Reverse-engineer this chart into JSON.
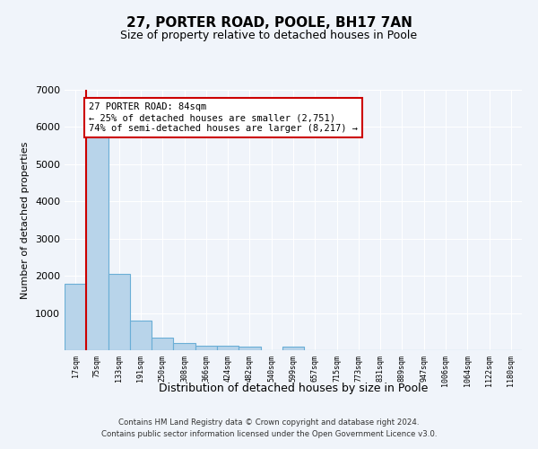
{
  "title": "27, PORTER ROAD, POOLE, BH17 7AN",
  "subtitle": "Size of property relative to detached houses in Poole",
  "xlabel": "Distribution of detached houses by size in Poole",
  "ylabel": "Number of detached properties",
  "bin_labels": [
    "17sqm",
    "75sqm",
    "133sqm",
    "191sqm",
    "250sqm",
    "308sqm",
    "366sqm",
    "424sqm",
    "482sqm",
    "540sqm",
    "599sqm",
    "657sqm",
    "715sqm",
    "773sqm",
    "831sqm",
    "889sqm",
    "947sqm",
    "1006sqm",
    "1064sqm",
    "1122sqm",
    "1180sqm"
  ],
  "bar_values": [
    1780,
    5780,
    2060,
    800,
    340,
    195,
    120,
    110,
    100,
    0,
    90,
    0,
    0,
    0,
    0,
    0,
    0,
    0,
    0,
    0,
    0
  ],
  "bar_color": "#b8d4ea",
  "bar_edge_color": "#6aaed6",
  "red_line_color": "#cc0000",
  "annotation_text": "27 PORTER ROAD: 84sqm\n← 25% of detached houses are smaller (2,751)\n74% of semi-detached houses are larger (8,217) →",
  "annotation_box_color": "#ffffff",
  "annotation_box_edge": "#cc0000",
  "ylim": [
    0,
    7000
  ],
  "yticks": [
    0,
    1000,
    2000,
    3000,
    4000,
    5000,
    6000,
    7000
  ],
  "footer1": "Contains HM Land Registry data © Crown copyright and database right 2024.",
  "footer2": "Contains public sector information licensed under the Open Government Licence v3.0.",
  "bg_color": "#f0f4fa",
  "plot_bg_color": "#f0f4fa"
}
